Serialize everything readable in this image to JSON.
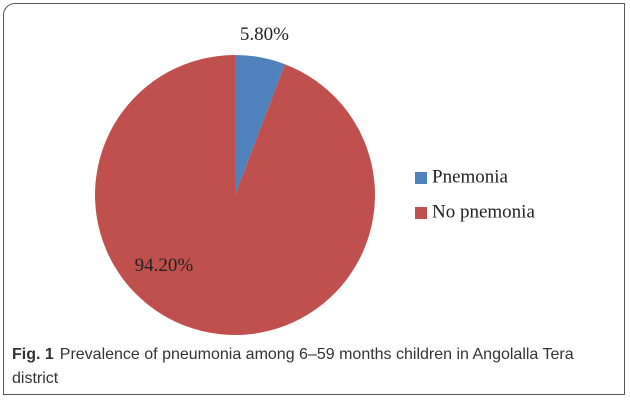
{
  "chart_data": {
    "type": "pie",
    "categories": [
      "Pnemonia",
      "No pnemonia"
    ],
    "values": [
      5.8,
      94.2
    ],
    "value_labels": [
      "5.80%",
      "94.20%"
    ],
    "colors": [
      "#4f81bd",
      "#c0504d"
    ],
    "legend": "right"
  },
  "caption": {
    "label": "Fig. 1",
    "text": "Prevalence of pneumonia among 6–59 months children in Angolalla Tera district"
  }
}
